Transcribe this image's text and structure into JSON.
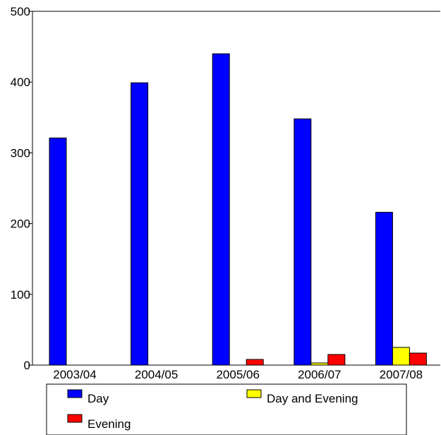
{
  "chart_data": {
    "type": "bar",
    "title": "",
    "xlabel": "",
    "ylabel": "",
    "categories": [
      "2003/04",
      "2004/05",
      "2005/06",
      "2006/07",
      "2007/08"
    ],
    "series": [
      {
        "name": "Day",
        "color": "#0000ff",
        "values": [
          321,
          399,
          440,
          348,
          216
        ]
      },
      {
        "name": "Day and Evening",
        "color": "#ffff00",
        "values": [
          0,
          0,
          0,
          3,
          25
        ]
      },
      {
        "name": "Evening",
        "color": "#ff0000",
        "values": [
          0,
          0,
          8,
          15,
          17
        ]
      }
    ],
    "ylim": [
      0,
      500
    ],
    "yticks": [
      0,
      100,
      200,
      300,
      400,
      500
    ],
    "grid": false,
    "legend_position": "bottom"
  }
}
